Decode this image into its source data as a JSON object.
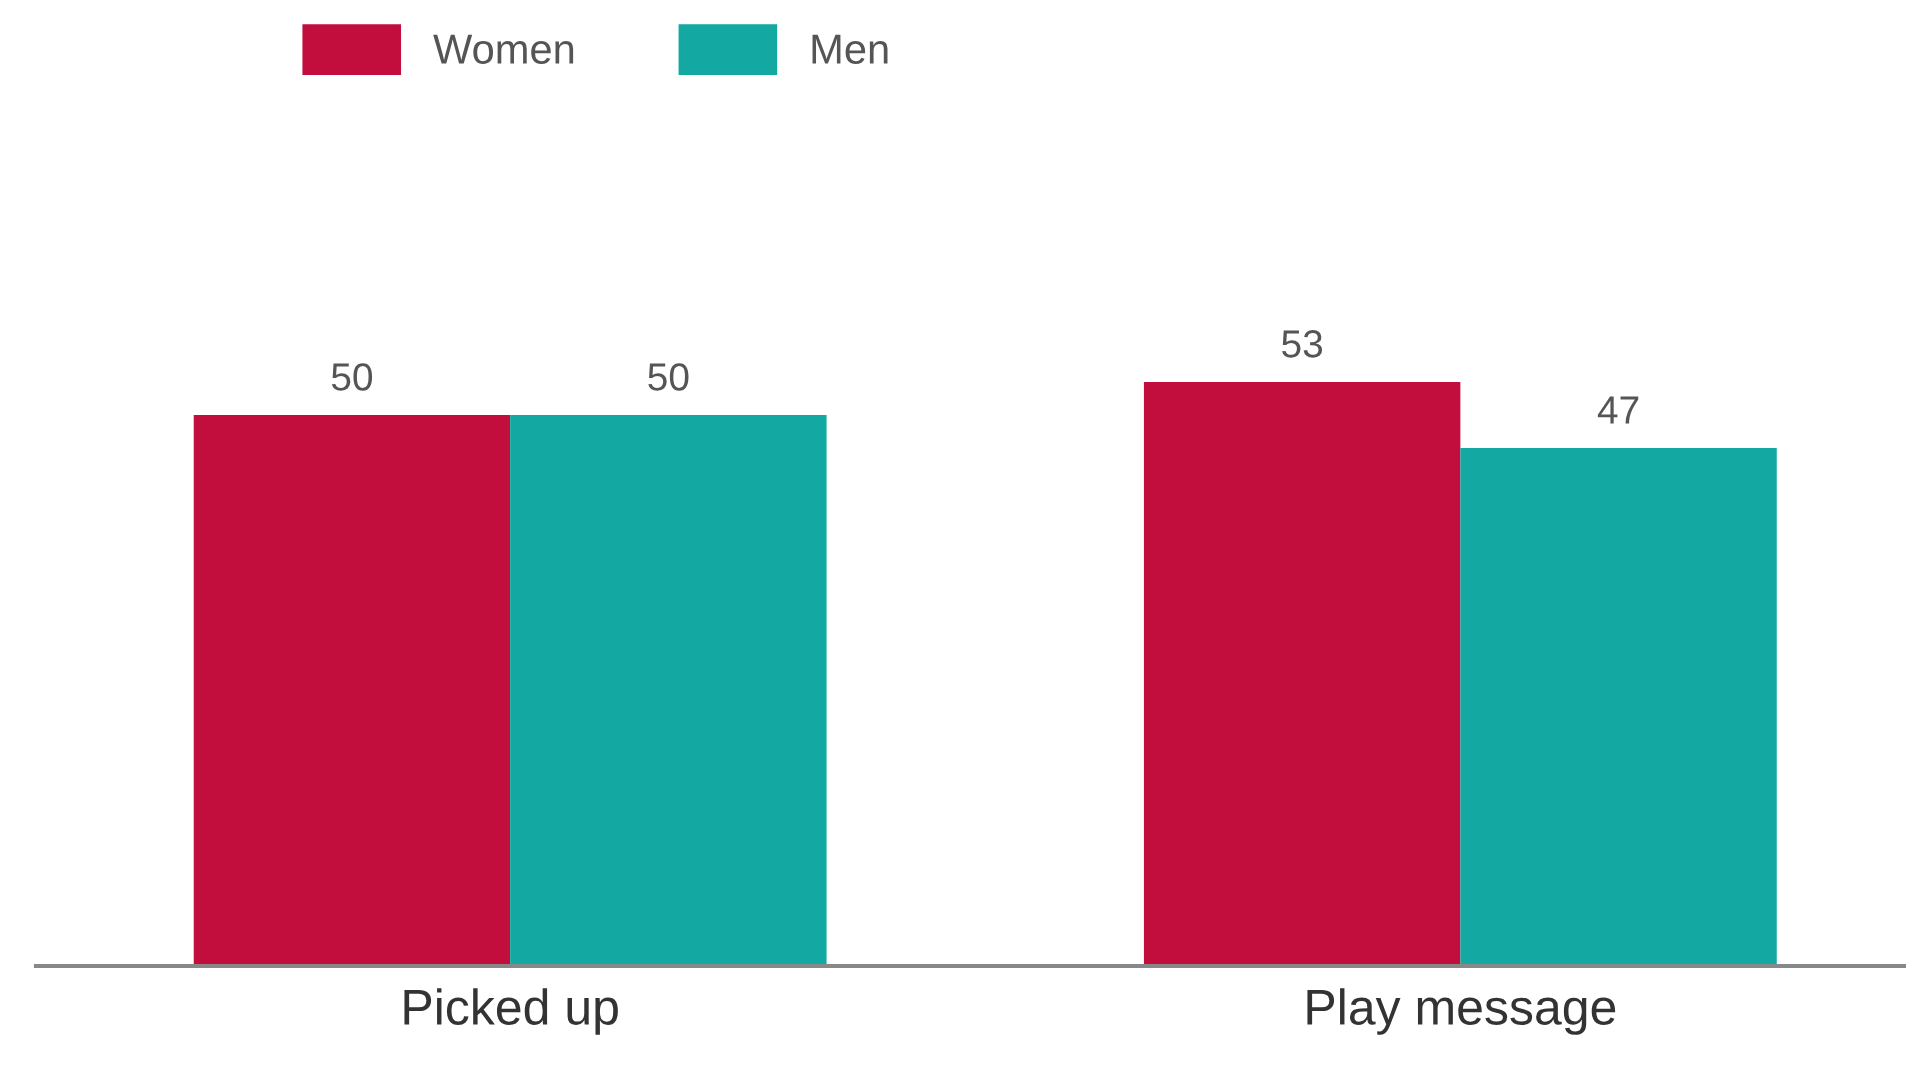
{
  "chart_data": {
    "type": "bar",
    "categories": [
      "Picked up",
      "Play message"
    ],
    "series": [
      {
        "name": "Women",
        "color": "#c20e3c",
        "values": [
          50,
          53
        ]
      },
      {
        "name": "Men",
        "color": "#14a8a2",
        "values": [
          50,
          47
        ]
      }
    ],
    "tick_labels": "x",
    "data_labels": true,
    "legend": "top",
    "grid": false
  }
}
